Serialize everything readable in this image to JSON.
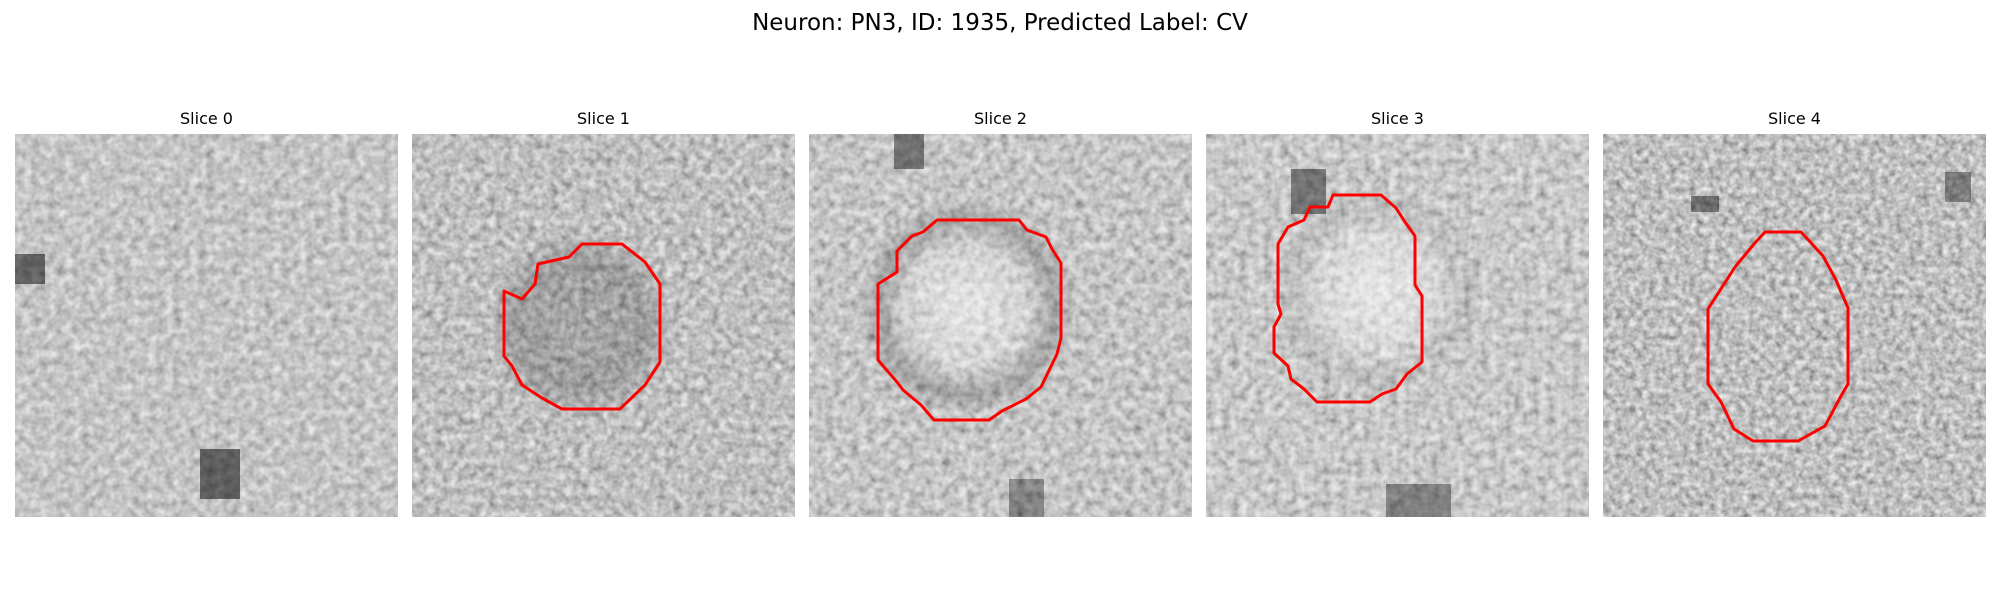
{
  "figure": {
    "title": "Neuron: PN3, ID: 1935, Predicted Label: CV"
  },
  "colors": {
    "background": "#ffffff",
    "contour": "#ff0000",
    "colormap": "grayscale"
  },
  "panels": [
    {
      "title": "Slice 0",
      "has_contour": false
    },
    {
      "title": "Slice 1",
      "has_contour": true
    },
    {
      "title": "Slice 2",
      "has_contour": true
    },
    {
      "title": "Slice 3",
      "has_contour": true
    },
    {
      "title": "Slice 4",
      "has_contour": true
    }
  ]
}
